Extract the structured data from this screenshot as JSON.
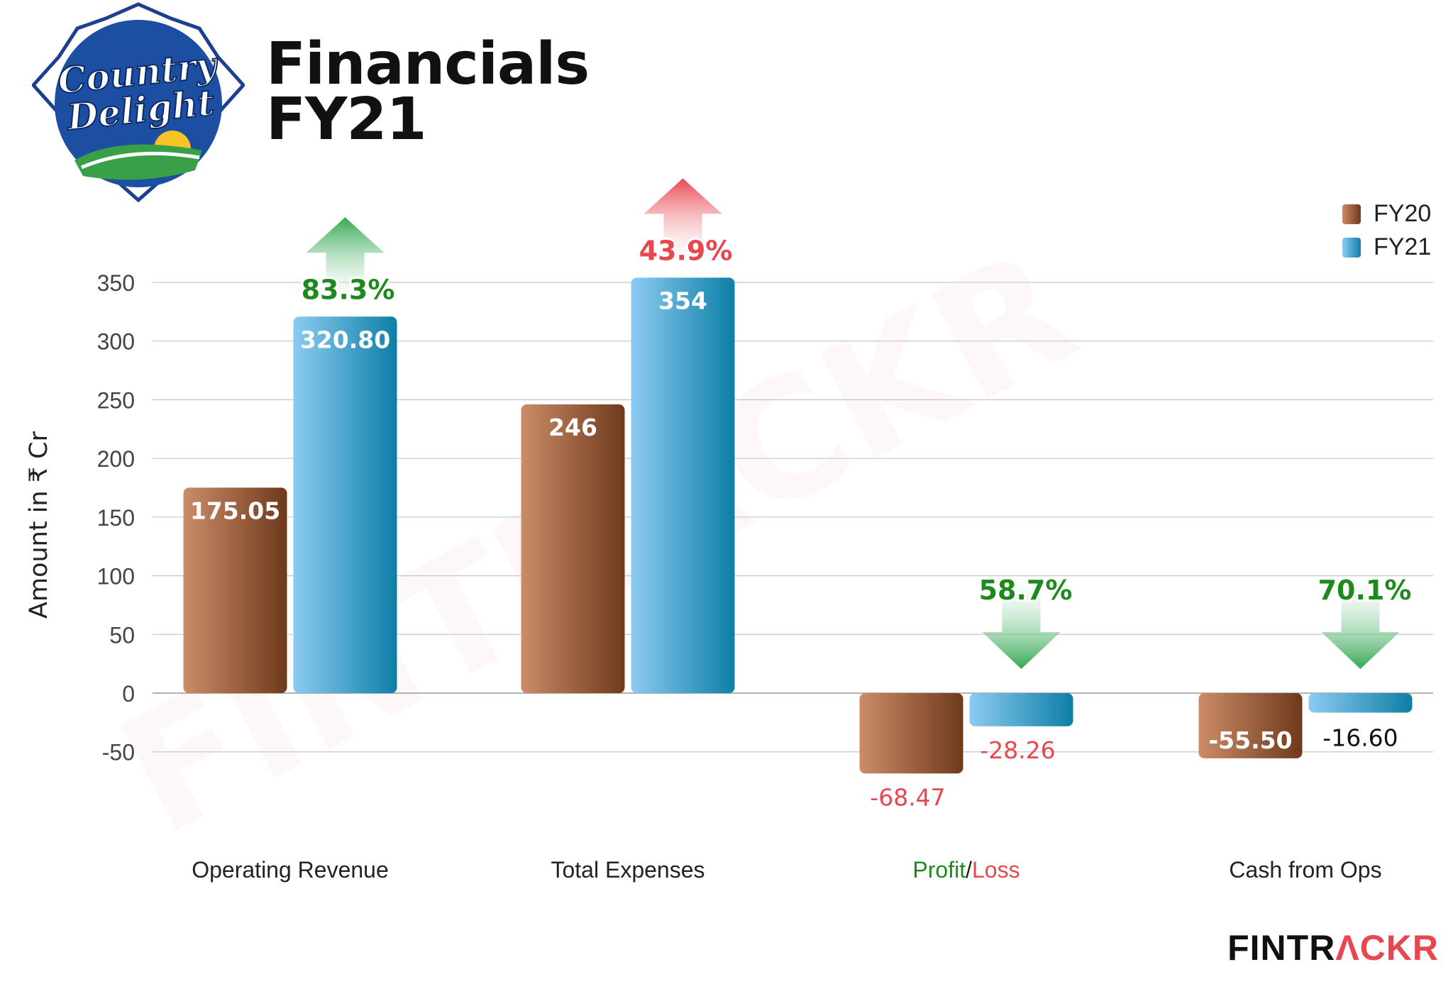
{
  "logo": {
    "line1": "Country",
    "line2": "Delight"
  },
  "title": {
    "line1": "Financials",
    "line2": "FY21"
  },
  "brand": {
    "part1": "FINTR",
    "part2": "ΛCKR",
    "watermark": "FINTRACKR"
  },
  "colors": {
    "fy20": "#a9643d",
    "fy21": "#3aa0d4",
    "up": "#1e8a1e",
    "down_red": "#e8474f"
  },
  "chart_data": {
    "type": "bar",
    "title": "Financials FY21",
    "ylabel": "Amount in ₹ Cr",
    "xlabel": "",
    "ylim": [
      -50,
      350
    ],
    "yticks": [
      "350",
      "300",
      "250",
      "200",
      "150",
      "100",
      "50",
      "0",
      "-50"
    ],
    "ytick_values": [
      350,
      300,
      250,
      200,
      150,
      100,
      50,
      0,
      -50
    ],
    "legend_position": "top-right",
    "categories": [
      {
        "label": "Operating Revenue",
        "kind": "plain"
      },
      {
        "label": "Total Expenses",
        "kind": "plain"
      },
      {
        "label_a": "Profit",
        "slash": "/",
        "label_b": "Loss",
        "kind": "split"
      },
      {
        "label": "Cash from Ops",
        "kind": "plain"
      }
    ],
    "series": [
      {
        "name": "FY20",
        "values": [
          175.05,
          246,
          -68.47,
          -55.5
        ],
        "labels": [
          "175.05",
          "246",
          "-68.47",
          "-55.50"
        ]
      },
      {
        "name": "FY21",
        "values": [
          320.8,
          354,
          -28.26,
          -16.6
        ],
        "labels": [
          "320.80",
          "354",
          "-28.26",
          "-16.60"
        ]
      }
    ],
    "changes": [
      {
        "text": "83.3%",
        "direction": "up",
        "tone": "green"
      },
      {
        "text": "43.9%",
        "direction": "up",
        "tone": "red"
      },
      {
        "text": "58.7%",
        "direction": "down",
        "tone": "green"
      },
      {
        "text": "70.1%",
        "direction": "down",
        "tone": "green"
      }
    ]
  }
}
